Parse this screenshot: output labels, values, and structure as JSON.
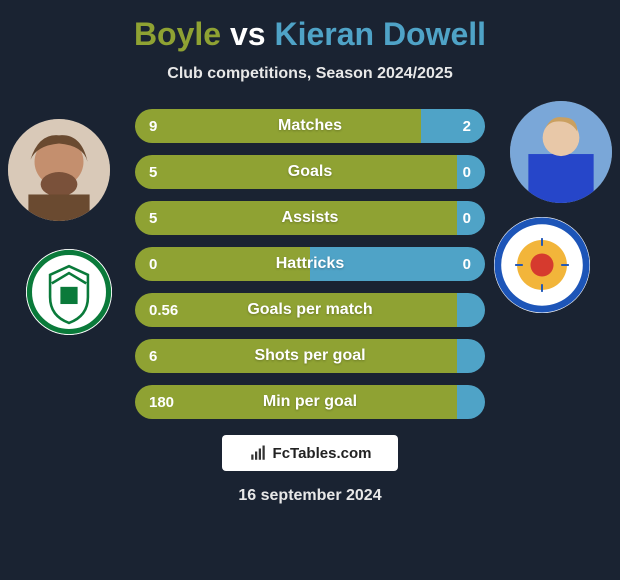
{
  "title": {
    "player1": "Boyle",
    "vs": "vs",
    "player2": "Kieran Dowell",
    "player1_color": "#8fa233",
    "player2_color": "#4fa3c7"
  },
  "subtitle": "Club competitions, Season 2024/2025",
  "stats": {
    "bar_total_width": 350,
    "left_color": "#8fa233",
    "right_color": "#4fa3c7",
    "rows": [
      {
        "label": "Matches",
        "left": "9",
        "right": "2",
        "left_pct": 81.8
      },
      {
        "label": "Goals",
        "left": "5",
        "right": "0",
        "left_pct": 100
      },
      {
        "label": "Assists",
        "left": "5",
        "right": "0",
        "left_pct": 100
      },
      {
        "label": "Hattricks",
        "left": "0",
        "right": "0",
        "left_pct": 50
      },
      {
        "label": "Goals per match",
        "left": "0.56",
        "right": "",
        "left_pct": 100
      },
      {
        "label": "Shots per goal",
        "left": "6",
        "right": "",
        "left_pct": 100
      },
      {
        "label": "Min per goal",
        "left": "180",
        "right": "",
        "left_pct": 100
      }
    ]
  },
  "footer": {
    "brand": "FcTables.com",
    "date": "16 september 2024"
  },
  "clubs": {
    "left_bg": "#ffffff",
    "left_accent": "#0a7a3a",
    "right_bg": "#ffffff",
    "right_accent": "#1d55b8"
  },
  "avatars": {
    "left_bg": "#b5846a",
    "right_bg": "#3a5fc2"
  }
}
